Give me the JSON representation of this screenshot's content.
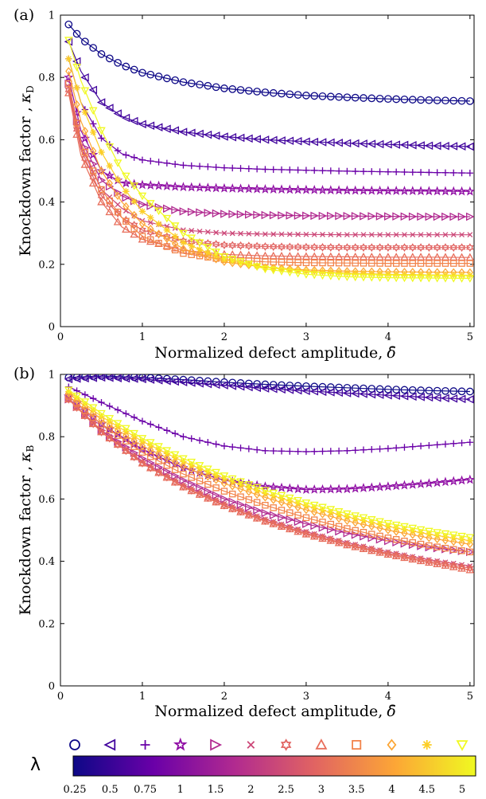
{
  "chart_data": [
    {
      "type": "line",
      "panel_label": "(a)",
      "xlabel": "Normalized defect amplitude,",
      "xlabel_symbol": "δ̄",
      "ylabel": "Knockdown factor ,",
      "ylabel_symbol": "κ",
      "ylabel_sub": "D",
      "xlim": [
        0,
        5.05
      ],
      "ylim": [
        0,
        1
      ],
      "xticks": [
        0,
        1,
        2,
        3,
        4,
        5
      ],
      "yticks": [
        0,
        0.2,
        0.4,
        0.6,
        0.8,
        1
      ],
      "ytick_labels": [
        "0",
        "0.2",
        "0.4",
        "0.6",
        "0.8",
        "1"
      ],
      "series": [
        {
          "name": "0.25",
          "marker": "circle",
          "color": "#0d0887",
          "x": [
            0.1,
            0.25,
            0.5,
            0.75,
            1,
            1.5,
            2,
            2.5,
            3,
            3.5,
            4,
            4.5,
            5
          ],
          "y": [
            0.97,
            0.925,
            0.875,
            0.84,
            0.815,
            0.785,
            0.765,
            0.752,
            0.742,
            0.736,
            0.731,
            0.727,
            0.724
          ]
        },
        {
          "name": "0.5",
          "marker": "triangle-left",
          "color": "#41049d",
          "x": [
            0.1,
            0.25,
            0.5,
            0.75,
            1,
            1.5,
            2,
            2.5,
            3,
            3.5,
            4,
            4.5,
            5
          ],
          "y": [
            0.915,
            0.82,
            0.72,
            0.675,
            0.65,
            0.625,
            0.61,
            0.6,
            0.594,
            0.589,
            0.585,
            0.581,
            0.578
          ]
        },
        {
          "name": "0.75",
          "marker": "plus",
          "color": "#6a00a8",
          "x": [
            0.1,
            0.25,
            0.5,
            0.75,
            1,
            1.5,
            2,
            2.5,
            3,
            3.5,
            4,
            4.5,
            5
          ],
          "y": [
            0.86,
            0.72,
            0.605,
            0.555,
            0.535,
            0.518,
            0.51,
            0.505,
            0.502,
            0.499,
            0.497,
            0.495,
            0.493
          ]
        },
        {
          "name": "1",
          "marker": "star",
          "color": "#8f0da4",
          "x": [
            0.1,
            0.25,
            0.5,
            0.75,
            1,
            1.5,
            2,
            2.5,
            3,
            3.5,
            4,
            4.5,
            5
          ],
          "y": [
            0.8,
            0.63,
            0.5,
            0.462,
            0.455,
            0.448,
            0.444,
            0.441,
            0.439,
            0.437,
            0.436,
            0.435,
            0.434
          ]
        },
        {
          "name": "1.5",
          "marker": "triangle-right",
          "color": "#b12a90",
          "x": [
            0.1,
            0.25,
            0.5,
            0.75,
            1,
            1.5,
            2,
            2.5,
            3,
            3.5,
            4,
            4.5,
            5
          ],
          "y": [
            0.78,
            0.6,
            0.47,
            0.42,
            0.392,
            0.37,
            0.362,
            0.358,
            0.356,
            0.355,
            0.354,
            0.353,
            0.353
          ]
        },
        {
          "name": "2",
          "marker": "x",
          "color": "#cc4778",
          "x": [
            0.1,
            0.25,
            0.5,
            0.75,
            1,
            1.5,
            2,
            2.5,
            3,
            3.5,
            4,
            4.5,
            5
          ],
          "y": [
            0.77,
            0.58,
            0.44,
            0.38,
            0.34,
            0.31,
            0.3,
            0.297,
            0.296,
            0.295,
            0.295,
            0.295,
            0.295
          ]
        },
        {
          "name": "2.5",
          "marker": "hexagram",
          "color": "#e16462",
          "x": [
            0.1,
            0.25,
            0.5,
            0.75,
            1,
            1.5,
            2,
            2.5,
            3,
            3.5,
            4,
            4.5,
            5
          ],
          "y": [
            0.76,
            0.57,
            0.42,
            0.35,
            0.31,
            0.275,
            0.262,
            0.257,
            0.255,
            0.254,
            0.254,
            0.254,
            0.254
          ]
        },
        {
          "name": "3",
          "marker": "triangle-up",
          "color": "#e86e5b",
          "x": [
            0.1,
            0.25,
            0.5,
            0.75,
            1,
            1.5,
            2,
            2.5,
            3,
            3.5,
            4,
            4.5,
            5
          ],
          "y": [
            0.75,
            0.55,
            0.4,
            0.32,
            0.28,
            0.245,
            0.232,
            0.227,
            0.225,
            0.224,
            0.223,
            0.223,
            0.222
          ]
        },
        {
          "name": "3.5",
          "marker": "square",
          "color": "#f2844b",
          "x": [
            0.1,
            0.25,
            0.5,
            0.75,
            1,
            1.5,
            2,
            2.5,
            3,
            3.5,
            4,
            4.5,
            5
          ],
          "y": [
            0.78,
            0.59,
            0.44,
            0.35,
            0.29,
            0.235,
            0.215,
            0.208,
            0.205,
            0.204,
            0.203,
            0.203,
            0.203
          ]
        },
        {
          "name": "4",
          "marker": "diamond",
          "color": "#fca636",
          "x": [
            0.1,
            0.25,
            0.5,
            0.75,
            1,
            1.5,
            2,
            2.5,
            3,
            3.5,
            4,
            4.5,
            5
          ],
          "y": [
            0.82,
            0.66,
            0.5,
            0.4,
            0.33,
            0.25,
            0.208,
            0.19,
            0.182,
            0.178,
            0.176,
            0.175,
            0.174
          ]
        },
        {
          "name": "4.5",
          "marker": "asterisk",
          "color": "#fcce25",
          "x": [
            0.1,
            0.25,
            0.5,
            0.75,
            1,
            1.5,
            2,
            2.5,
            3,
            3.5,
            4,
            4.5,
            5
          ],
          "y": [
            0.86,
            0.72,
            0.56,
            0.45,
            0.37,
            0.27,
            0.215,
            0.19,
            0.178,
            0.172,
            0.168,
            0.166,
            0.165
          ]
        },
        {
          "name": "5",
          "marker": "triangle-down",
          "color": "#f0f921",
          "x": [
            0.1,
            0.25,
            0.5,
            0.75,
            1,
            1.5,
            2,
            2.5,
            3,
            3.5,
            4,
            4.5,
            5
          ],
          "y": [
            0.92,
            0.79,
            0.63,
            0.5,
            0.42,
            0.3,
            0.225,
            0.185,
            0.168,
            0.16,
            0.157,
            0.156,
            0.155
          ]
        }
      ]
    },
    {
      "type": "line",
      "panel_label": "(b)",
      "xlabel": "Normalized defect amplitude,",
      "xlabel_symbol": "δ̄",
      "ylabel": "Knockdown factor ,",
      "ylabel_symbol": "κ",
      "ylabel_sub": "B",
      "xlim": [
        0,
        5.05
      ],
      "ylim": [
        0,
        1
      ],
      "xticks": [
        0,
        1,
        2,
        3,
        4,
        5
      ],
      "yticks": [
        0,
        0.2,
        0.4,
        0.6,
        0.8,
        1
      ],
      "ytick_labels": [
        "0",
        "0.2",
        "0.4",
        "0.6",
        "0.8",
        "1"
      ],
      "series": [
        {
          "name": "0.25",
          "marker": "circle",
          "color": "#0d0887",
          "x": [
            0.1,
            0.5,
            1,
            1.5,
            2,
            2.5,
            3,
            3.5,
            4,
            4.5,
            5
          ],
          "y": [
            0.99,
            0.995,
            0.99,
            0.983,
            0.975,
            0.968,
            0.962,
            0.957,
            0.952,
            0.948,
            0.945
          ]
        },
        {
          "name": "0.5",
          "marker": "triangle-left",
          "color": "#41049d",
          "x": [
            0.1,
            0.5,
            1,
            1.5,
            2,
            2.5,
            3,
            3.5,
            4,
            4.5,
            5
          ],
          "y": [
            0.985,
            0.99,
            0.985,
            0.975,
            0.965,
            0.955,
            0.947,
            0.94,
            0.933,
            0.926,
            0.92
          ]
        },
        {
          "name": "0.75",
          "marker": "plus",
          "color": "#6a00a8",
          "x": [
            0.1,
            0.5,
            1,
            1.5,
            2,
            2.5,
            3,
            3.5,
            4,
            4.5,
            5
          ],
          "y": [
            0.96,
            0.91,
            0.85,
            0.8,
            0.77,
            0.755,
            0.752,
            0.755,
            0.762,
            0.772,
            0.782
          ]
        },
        {
          "name": "1",
          "marker": "star",
          "color": "#8f0da4",
          "x": [
            0.1,
            0.5,
            1,
            1.5,
            2,
            2.5,
            3,
            3.5,
            4,
            4.5,
            5
          ],
          "y": [
            0.93,
            0.84,
            0.76,
            0.7,
            0.66,
            0.64,
            0.63,
            0.632,
            0.64,
            0.65,
            0.662
          ]
        },
        {
          "name": "1.5",
          "marker": "triangle-right",
          "color": "#b12a90",
          "x": [
            0.1,
            0.5,
            1,
            1.5,
            2,
            2.5,
            3,
            3.5,
            4,
            4.5,
            5
          ],
          "y": [
            0.92,
            0.82,
            0.73,
            0.66,
            0.6,
            0.555,
            0.52,
            0.49,
            0.465,
            0.445,
            0.43
          ]
        },
        {
          "name": "2",
          "marker": "x",
          "color": "#cc4778",
          "x": [
            0.1,
            0.5,
            1,
            1.5,
            2,
            2.5,
            3,
            3.5,
            4,
            4.5,
            5
          ],
          "y": [
            0.92,
            0.82,
            0.72,
            0.645,
            0.585,
            0.535,
            0.495,
            0.46,
            0.43,
            0.405,
            0.385
          ]
        },
        {
          "name": "2.5",
          "marker": "hexagram",
          "color": "#e16462",
          "x": [
            0.1,
            0.5,
            1,
            1.5,
            2,
            2.5,
            3,
            3.5,
            4,
            4.5,
            5
          ],
          "y": [
            0.92,
            0.815,
            0.715,
            0.64,
            0.58,
            0.53,
            0.49,
            0.455,
            0.425,
            0.4,
            0.378
          ]
        },
        {
          "name": "3",
          "marker": "triangle-up",
          "color": "#e86e5b",
          "x": [
            0.1,
            0.5,
            1,
            1.5,
            2,
            2.5,
            3,
            3.5,
            4,
            4.5,
            5
          ],
          "y": [
            0.92,
            0.815,
            0.715,
            0.638,
            0.578,
            0.528,
            0.487,
            0.452,
            0.422,
            0.396,
            0.372
          ]
        },
        {
          "name": "3.5",
          "marker": "square",
          "color": "#f2844b",
          "x": [
            0.1,
            0.5,
            1,
            1.5,
            2,
            2.5,
            3,
            3.5,
            4,
            4.5,
            5
          ],
          "y": [
            0.93,
            0.84,
            0.75,
            0.68,
            0.625,
            0.58,
            0.54,
            0.505,
            0.475,
            0.45,
            0.43
          ]
        },
        {
          "name": "4",
          "marker": "diamond",
          "color": "#fca636",
          "x": [
            0.1,
            0.5,
            1,
            1.5,
            2,
            2.5,
            3,
            3.5,
            4,
            4.5,
            5
          ],
          "y": [
            0.94,
            0.855,
            0.77,
            0.705,
            0.65,
            0.605,
            0.565,
            0.53,
            0.5,
            0.475,
            0.455
          ]
        },
        {
          "name": "4.5",
          "marker": "asterisk",
          "color": "#fcce25",
          "x": [
            0.1,
            0.5,
            1,
            1.5,
            2,
            2.5,
            3,
            3.5,
            4,
            4.5,
            5
          ],
          "y": [
            0.945,
            0.865,
            0.785,
            0.72,
            0.665,
            0.618,
            0.578,
            0.543,
            0.512,
            0.487,
            0.466
          ]
        },
        {
          "name": "5",
          "marker": "triangle-down",
          "color": "#f0f921",
          "x": [
            0.1,
            0.5,
            1,
            1.5,
            2,
            2.5,
            3,
            3.5,
            4,
            4.5,
            5
          ],
          "y": [
            0.95,
            0.875,
            0.795,
            0.73,
            0.675,
            0.628,
            0.588,
            0.553,
            0.522,
            0.497,
            0.477
          ]
        }
      ]
    }
  ],
  "colorbar": {
    "label": "λ",
    "tick_labels": [
      "0.25",
      "0.5",
      "0.75",
      "1",
      "1.5",
      "2",
      "2.5",
      "3",
      "3.5",
      "4",
      "4.5",
      "5"
    ],
    "colormap": [
      "#0d0887",
      "#6a00a8",
      "#b12a90",
      "#e16462",
      "#fca636",
      "#f0f921"
    ]
  }
}
